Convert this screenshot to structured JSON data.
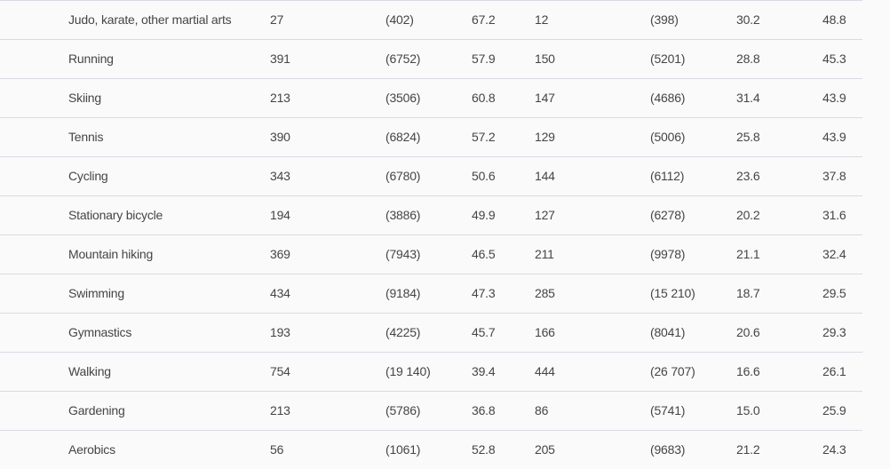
{
  "table": {
    "rows": [
      [
        "Judo, karate, other martial arts",
        "27",
        "(402)",
        "67.2",
        "12",
        "(398)",
        "30.2",
        "48.8"
      ],
      [
        "Running",
        "391",
        "(6752)",
        "57.9",
        "150",
        "(5201)",
        "28.8",
        "45.3"
      ],
      [
        "Skiing",
        "213",
        "(3506)",
        "60.8",
        "147",
        "(4686)",
        "31.4",
        "43.9"
      ],
      [
        "Tennis",
        "390",
        "(6824)",
        "57.2",
        "129",
        "(5006)",
        "25.8",
        "43.9"
      ],
      [
        "Cycling",
        "343",
        "(6780)",
        "50.6",
        "144",
        "(6112)",
        "23.6",
        "37.8"
      ],
      [
        "Stationary bicycle",
        "194",
        "(3886)",
        "49.9",
        "127",
        "(6278)",
        "20.2",
        "31.6"
      ],
      [
        "Mountain hiking",
        "369",
        "(7943)",
        "46.5",
        "211",
        "(9978)",
        "21.1",
        "32.4"
      ],
      [
        "Swimming",
        "434",
        "(9184)",
        "47.3",
        "285",
        "(15 210)",
        "18.7",
        "29.5"
      ],
      [
        "Gymnastics",
        "193",
        "(4225)",
        "45.7",
        "166",
        "(8041)",
        "20.6",
        "29.3"
      ],
      [
        "Walking",
        "754",
        "(19 140)",
        "39.4",
        "444",
        "(26 707)",
        "16.6",
        "26.1"
      ],
      [
        "Gardening",
        "213",
        "(5786)",
        "36.8",
        "86",
        "(5741)",
        "15.0",
        "25.9"
      ],
      [
        "Aerobics",
        "56",
        "(1061)",
        "52.8",
        "205",
        "(9683)",
        "21.2",
        "24.3"
      ]
    ]
  }
}
